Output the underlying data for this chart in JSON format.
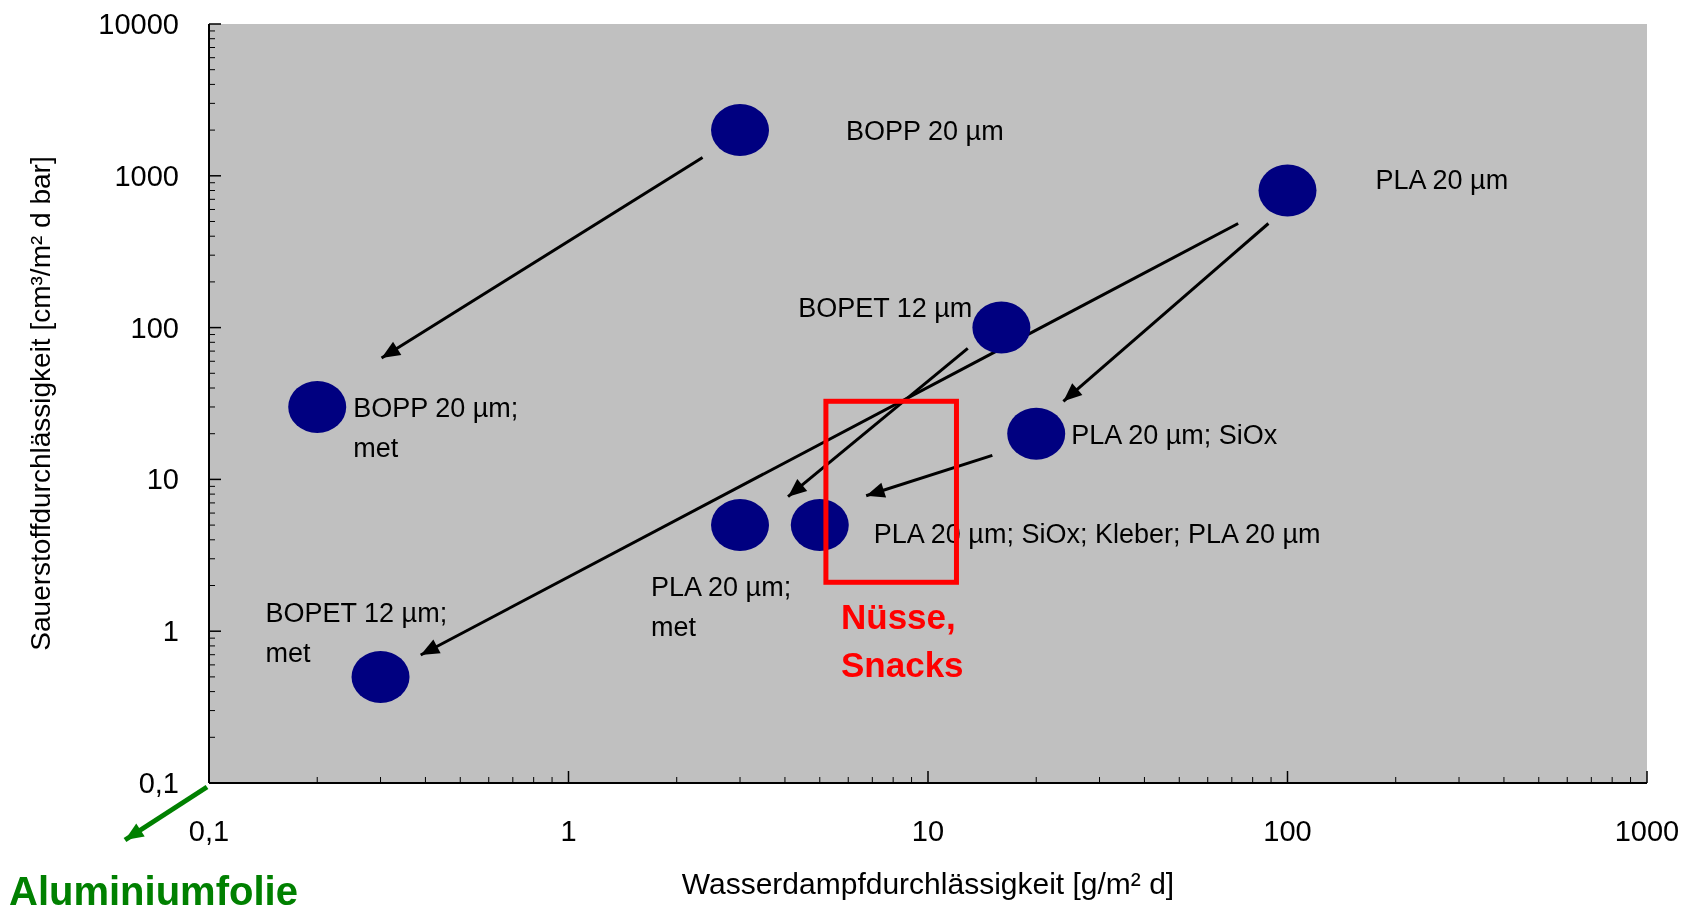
{
  "chart_data": {
    "type": "scatter",
    "xlabel": "Wasserdampfdurchlässigkeit [g/m² d]",
    "ylabel": "Sauerstoffdurchlässigkeit [cm³/m² d bar]",
    "log": "xy",
    "marker": "circle",
    "xlim": [
      0.1,
      1000
    ],
    "xticks": [
      {
        "value": 0.1,
        "label": "0,1"
      },
      1,
      10,
      100,
      1000
    ],
    "ylim": [
      0.1,
      10000
    ],
    "yticks": [
      {
        "value": 0.1,
        "label": "0,1"
      },
      1,
      10,
      100,
      1000,
      10000
    ],
    "series": [
      {
        "color": "#000080",
        "x": [
          3,
          100,
          16,
          0.2,
          20,
          3,
          5,
          0.3
        ],
        "values": [
          2000,
          800,
          100,
          30,
          20,
          5,
          5,
          0.5
        ]
      }
    ],
    "annotations": [
      "BOPP 20 µm",
      "PLA 20 µm",
      "BOPET 12 µm",
      "BOPP 20 µm;\nmet",
      "PLA 20 µm;  SiOx",
      "PLA 20 µm;\nmet",
      "PLA 20 µm; SiOx; Kleber; PLA 20 µm",
      "BOPET 12 µm;\nmet",
      "Nüsse,\nSnacks",
      "Aluminiumfolie"
    ]
  }
}
